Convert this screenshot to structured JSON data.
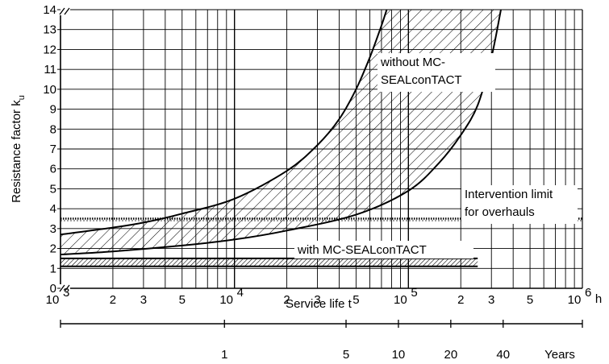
{
  "chart_data": {
    "type": "area",
    "ylabel": "Resistance factor k",
    "ylabel_subscript": "u",
    "xlabel": "Service life  t",
    "x_unit": "h",
    "x_scale": "log",
    "xlim": [
      1000,
      1000000
    ],
    "ylim": [
      0,
      14
    ],
    "grid": true,
    "y_ticks": [
      "0",
      "1",
      "2",
      "3",
      "4",
      "5",
      "6",
      "7",
      "8",
      "9",
      "10",
      "11",
      "12",
      "13",
      "14"
    ],
    "x_major_ticks": [
      {
        "value": 1000,
        "base": "10",
        "exp": "3"
      },
      {
        "value": 10000,
        "base": "10",
        "exp": "4"
      },
      {
        "value": 100000,
        "base": "10",
        "exp": "5"
      },
      {
        "value": 1000000,
        "base": "10",
        "exp": "6"
      }
    ],
    "x_minor_labels": [
      "2",
      "3",
      "5"
    ],
    "years_axis": {
      "unit_label": "Years",
      "ticks": [
        {
          "label": "1",
          "hours": 8760
        },
        {
          "label": "5",
          "hours": 43800
        },
        {
          "label": "10",
          "hours": 87600
        },
        {
          "label": "20",
          "hours": 175200
        },
        {
          "label": "40",
          "hours": 350400
        }
      ]
    },
    "bands": [
      {
        "label_lines": [
          "without MC-",
          "SEALconTACT"
        ],
        "upper": {
          "x": [
            1000,
            2000,
            3000,
            5000,
            10000,
            20000,
            30000,
            40000,
            50000,
            60000,
            70000,
            75000
          ],
          "y": [
            2.7,
            3.05,
            3.3,
            3.75,
            4.5,
            5.9,
            7.2,
            8.5,
            10.0,
            11.6,
            13.2,
            14.0
          ]
        },
        "lower": {
          "x": [
            1000,
            2000,
            5000,
            10000,
            20000,
            50000,
            100000,
            150000,
            200000,
            250000,
            300000,
            340000
          ],
          "y": [
            1.7,
            1.85,
            2.15,
            2.45,
            2.9,
            3.7,
            4.9,
            6.3,
            7.7,
            9.2,
            11.6,
            14.0
          ]
        }
      },
      {
        "label_lines": [
          "with MC-SEALconTACT"
        ],
        "upper": {
          "x": [
            1000,
            250000
          ],
          "y": [
            1.5,
            1.5
          ]
        },
        "lower": {
          "x": [
            1000,
            250000
          ],
          "y": [
            1.1,
            1.1
          ]
        }
      }
    ],
    "reference_lines": [
      {
        "label_lines": [
          "Intervention limit",
          "for overhauls"
        ],
        "y": 3.5,
        "style": "dotted"
      }
    ]
  }
}
